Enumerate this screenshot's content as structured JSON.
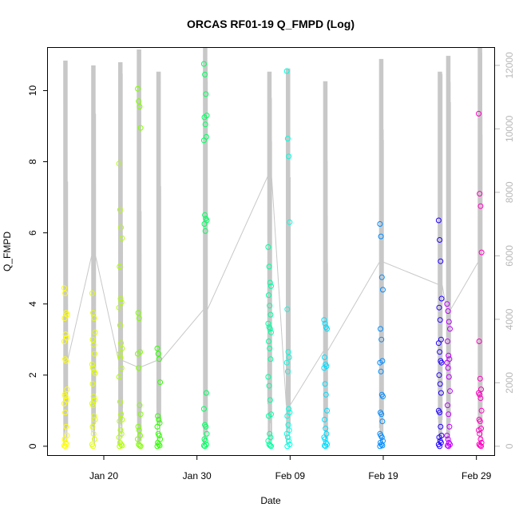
{
  "chart_data": {
    "type": "scatter",
    "title": "ORCAS RF01-19 Q_FMPD (Log)",
    "xlabel": "Date",
    "ylabel": "Q_FMPD",
    "x_ticks": [
      "Jan 20",
      "Jan 30",
      "Feb 09",
      "Feb 19",
      "Feb 29"
    ],
    "y_ticks": [
      0,
      2,
      4,
      6,
      8,
      10
    ],
    "y_right_ticks": [
      0,
      2000,
      4000,
      6000,
      8000,
      10000,
      12000
    ],
    "xlim": [
      "2016-01-14",
      "2016-03-02"
    ],
    "ylim": [
      -0.25,
      11.2
    ],
    "y_right_lim": [
      -280,
      12550
    ],
    "grid": false,
    "scatter_colors": [
      "#FFFF00",
      "#DFFF00",
      "#B0FF00",
      "#80FF00",
      "#30FF00",
      "#00FF60",
      "#00FFA0",
      "#00FFE0",
      "#00DCFF",
      "#008CFF",
      "#2000FF",
      "#C000FF",
      "#FF00C0",
      "#FF0070"
    ],
    "line_color": "#C8C8C8",
    "flights": [
      {
        "date": "2016-01-15.9",
        "q_values": [
          4.45,
          4.3,
          3.75,
          3.7,
          3.6,
          3.15,
          3.05,
          2.95,
          2.45,
          2.4,
          1.6,
          1.45,
          1.4,
          1.3,
          1.2,
          0.95,
          0.55,
          0.3,
          0.2,
          0.1,
          0.05,
          0.02,
          0.0
        ],
        "background_peak": 12150,
        "background_base": 2700
      },
      {
        "date": "2016-01-18.9",
        "q_values": [
          4.3,
          3.75,
          3.6,
          3.2,
          3.0,
          2.85,
          2.6,
          2.3,
          2.2,
          2.1,
          2.05,
          1.75,
          1.4,
          1.3,
          1.2,
          1.15,
          0.85,
          0.75,
          0.55,
          0.35,
          0.2,
          0.05,
          0.0
        ],
        "background_peak": 12000,
        "background_base": 6000
      },
      {
        "date": "2016-01-21.8",
        "q_values": [
          7.95,
          6.65,
          6.15,
          5.85,
          5.05,
          4.15,
          4.05,
          3.9,
          3.4,
          2.9,
          2.75,
          2.6,
          2.5,
          2.2,
          1.95,
          1.25,
          0.9,
          0.75,
          0.7,
          0.45,
          0.35,
          0.25,
          0.1,
          0.05,
          0.02,
          0.0
        ],
        "background_peak": 12100,
        "background_base": 2700
      },
      {
        "date": "2016-01-23.8",
        "q_values": [
          10.05,
          9.7,
          9.55,
          8.95,
          3.75,
          3.6,
          2.65,
          2.6,
          2.2,
          1.15,
          0.9,
          0.55,
          0.45,
          0.3,
          0.2,
          0.05,
          0.02,
          0.0
        ],
        "background_peak": 12500,
        "background_base": 2500
      },
      {
        "date": "2016-01-25.9",
        "q_values": [
          2.75,
          2.6,
          2.45,
          1.8,
          0.85,
          0.75,
          0.65,
          0.55,
          0.35,
          0.3,
          0.2,
          0.1,
          0.05,
          0.02,
          0.0
        ],
        "background_peak": 11800,
        "background_base": 2700
      },
      {
        "date": "2016-01-30.9",
        "q_values": [
          10.75,
          10.45,
          9.9,
          9.3,
          9.25,
          9.05,
          8.7,
          8.6,
          6.5,
          6.4,
          6.35,
          6.25,
          6.05,
          1.5,
          1.05,
          0.6,
          0.55,
          0.35,
          0.2,
          0.15,
          0.05,
          0.02,
          0.0
        ],
        "background_peak": 12550,
        "background_base": 4300
      },
      {
        "date": "2016-02-06.8",
        "q_values": [
          5.6,
          5.05,
          4.6,
          4.5,
          4.25,
          3.95,
          3.7,
          3.45,
          3.35,
          3.3,
          3.2,
          2.95,
          2.75,
          2.45,
          1.95,
          1.7,
          1.3,
          0.9,
          0.85,
          0.35,
          0.25,
          0.15,
          0.05,
          0.02,
          0.0
        ],
        "background_peak": 11800,
        "background_base": 8500
      },
      {
        "date": "2016-02-08.8",
        "q_values": [
          10.55,
          8.65,
          8.15,
          6.3,
          3.85,
          2.65,
          2.5,
          2.35,
          2.1,
          1.05,
          0.95,
          0.85,
          0.6,
          0.45,
          0.35,
          0.25,
          0.15,
          0.05,
          0.0
        ],
        "background_peak": 11900,
        "background_base": 1300
      },
      {
        "date": "2016-02-12.8",
        "q_values": [
          3.55,
          3.45,
          3.35,
          3.3,
          2.5,
          2.3,
          2.25,
          2.2,
          1.75,
          1.45,
          1.0,
          0.75,
          0.5,
          0.35,
          0.25,
          0.2,
          0.1,
          0.05,
          0.02,
          0.0
        ],
        "background_peak": 11500,
        "background_base": 3000
      },
      {
        "date": "2016-02-18.8",
        "q_values": [
          6.25,
          5.9,
          4.75,
          4.4,
          3.3,
          3.0,
          2.4,
          2.35,
          2.1,
          1.45,
          1.4,
          0.95,
          0.9,
          0.7,
          0.35,
          0.3,
          0.25,
          0.15,
          0.1,
          0.05,
          0.02,
          0.0
        ],
        "background_peak": 12200,
        "background_base": 5800
      },
      {
        "date": "2016-02-25.1",
        "q_values": [
          6.35,
          5.8,
          5.2,
          4.15,
          3.9,
          3.55,
          3.0,
          2.9,
          2.65,
          2.4,
          2.35,
          2.0,
          1.75,
          1.5,
          1.0,
          0.95,
          0.55,
          0.3,
          0.25,
          0.15,
          0.1,
          0.05,
          0.0
        ],
        "background_peak": 11800,
        "background_base": 5100
      },
      {
        "date": "2016-02-26.0",
        "q_values": [
          4.0,
          3.8,
          3.5,
          3.3,
          2.95,
          2.55,
          2.45,
          2.35,
          2.2,
          1.95,
          1.55,
          1.15,
          0.9,
          0.55,
          0.3,
          0.2,
          0.1,
          0.05,
          0.02,
          0.0
        ],
        "background_peak": 12300,
        "background_base": 4300
      },
      {
        "date": "2016-02-29.4",
        "q_values": [
          9.35,
          7.1,
          6.75,
          5.45,
          2.95,
          1.9,
          1.6,
          1.5,
          1.45,
          1.35,
          1.0,
          0.75,
          0.7,
          0.5,
          0.45,
          0.35,
          0.2,
          0.1,
          0.05,
          0.02,
          0.0
        ],
        "background_peak": 12550,
        "background_base": 5800
      }
    ]
  }
}
